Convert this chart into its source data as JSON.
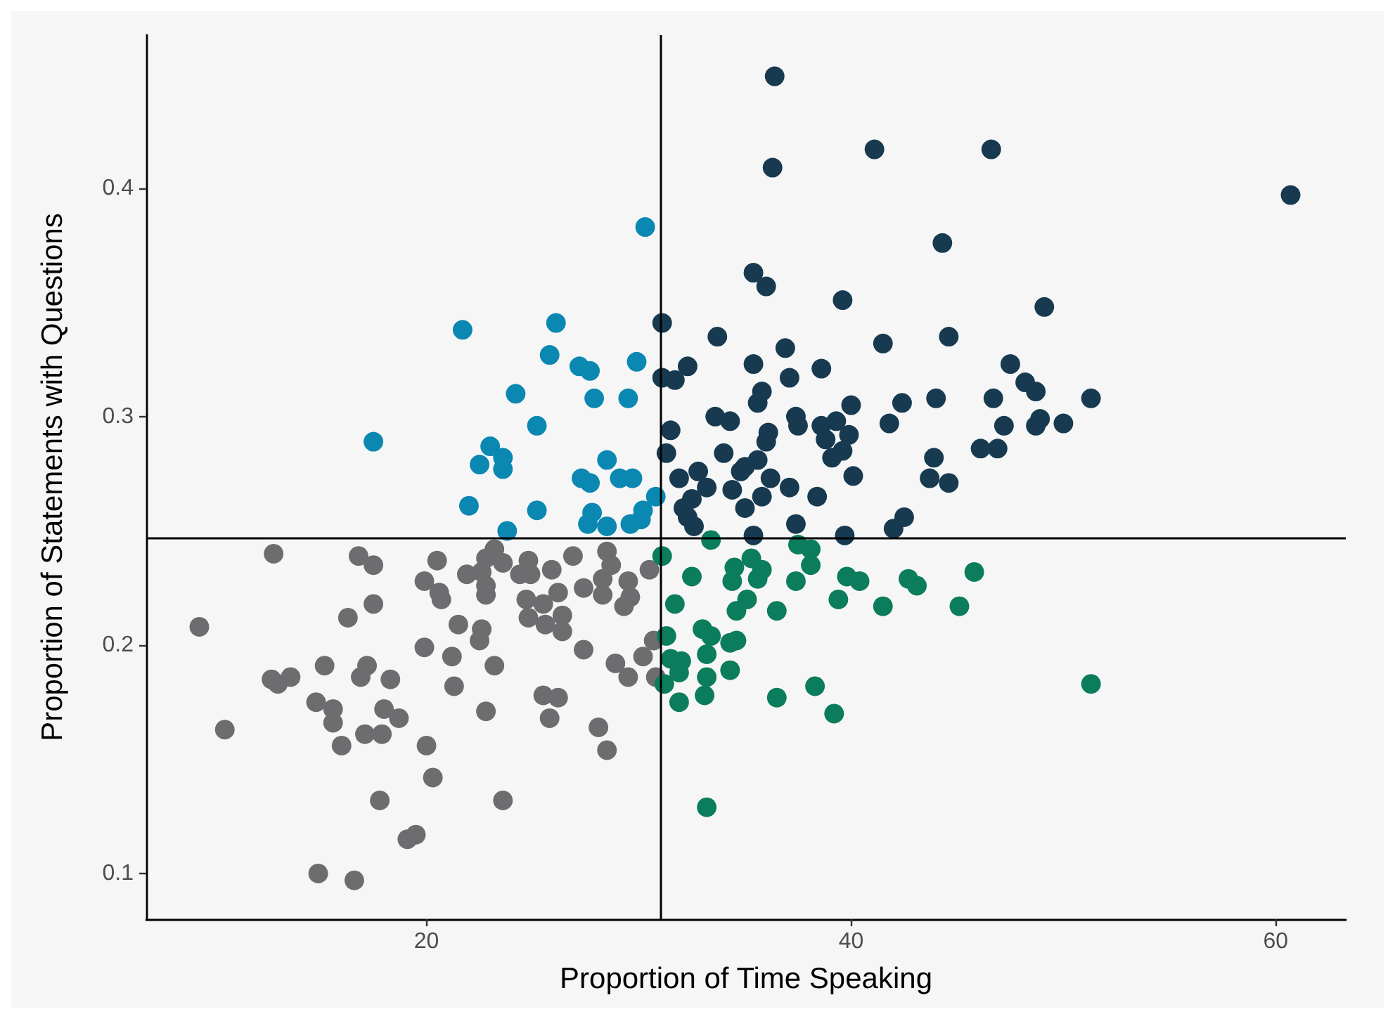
{
  "chart_data": {
    "type": "scatter",
    "xlabel": "Proportion of Time Speaking",
    "ylabel": "Proportion of Statements with Questions",
    "xlim": [
      6.8,
      63.3
    ],
    "ylim": [
      0.08,
      0.467
    ],
    "xticks": [
      20,
      40,
      60
    ],
    "yticks": [
      0.1,
      0.2,
      0.3,
      0.4
    ],
    "marker": "circle",
    "ref_lines": [
      {
        "axis": "x",
        "value": 31.0,
        "color": "#000000"
      },
      {
        "axis": "y",
        "value": 0.247,
        "color": "#000000"
      }
    ],
    "series": [
      {
        "color": "#6d6d70",
        "x": [
          12.8,
          16.8,
          17.5,
          20.5,
          23.2,
          22.8,
          23.6,
          24.8,
          25.9,
          26.9,
          28.5,
          28.7,
          30.5,
          19.9,
          21.9,
          22.6,
          24.4,
          24.9,
          20.6,
          20.7,
          22.8,
          22.8,
          27.4,
          28.3,
          28.3,
          29.5,
          29.6,
          29.3,
          26.2,
          24.7,
          25.5,
          17.5,
          9.3,
          16.3,
          21.5,
          22.6,
          22.5,
          24.8,
          25.6,
          26.4,
          26.4,
          19.9,
          21.2,
          23.2,
          27.4,
          28.9,
          29.5,
          30.2,
          30.7,
          30.8,
          15.2,
          17.2,
          16.9,
          12.7,
          13.0,
          13.6,
          18.3,
          21.3,
          14.8,
          15.6,
          15.6,
          18.0,
          18.7,
          22.8,
          25.5,
          26.2,
          25.8,
          10.5,
          17.1,
          17.9,
          16.0,
          20.0,
          28.1,
          28.5,
          20.3,
          17.8,
          23.6,
          19.1,
          19.5,
          14.9,
          16.6
        ],
        "values": [
          0.24,
          0.239,
          0.235,
          0.237,
          0.242,
          0.238,
          0.236,
          0.237,
          0.233,
          0.239,
          0.241,
          0.235,
          0.233,
          0.228,
          0.231,
          0.232,
          0.231,
          0.231,
          0.223,
          0.22,
          0.226,
          0.222,
          0.225,
          0.229,
          0.222,
          0.228,
          0.221,
          0.217,
          0.223,
          0.22,
          0.218,
          0.218,
          0.208,
          0.212,
          0.209,
          0.207,
          0.202,
          0.212,
          0.209,
          0.213,
          0.206,
          0.199,
          0.195,
          0.191,
          0.198,
          0.192,
          0.186,
          0.195,
          0.202,
          0.186,
          0.191,
          0.191,
          0.186,
          0.185,
          0.183,
          0.186,
          0.185,
          0.182,
          0.175,
          0.172,
          0.166,
          0.172,
          0.168,
          0.171,
          0.178,
          0.177,
          0.168,
          0.163,
          0.161,
          0.161,
          0.156,
          0.156,
          0.164,
          0.154,
          0.142,
          0.132,
          0.132,
          0.115,
          0.117,
          0.1,
          0.097
        ]
      },
      {
        "color": "#0b88b2",
        "x": [
          30.3,
          21.7,
          26.1,
          25.8,
          27.2,
          27.7,
          29.9,
          24.2,
          27.9,
          29.5,
          25.2,
          17.5,
          23.0,
          23.6,
          22.5,
          23.6,
          28.5,
          27.3,
          27.7,
          29.1,
          29.7,
          30.8,
          22.0,
          25.2,
          27.8,
          27.6,
          28.5,
          29.6,
          30.2,
          30.1,
          23.8
        ],
        "values": [
          0.383,
          0.338,
          0.341,
          0.327,
          0.322,
          0.32,
          0.324,
          0.31,
          0.308,
          0.308,
          0.296,
          0.289,
          0.287,
          0.282,
          0.279,
          0.277,
          0.281,
          0.273,
          0.271,
          0.273,
          0.273,
          0.265,
          0.261,
          0.259,
          0.258,
          0.253,
          0.252,
          0.253,
          0.259,
          0.255,
          0.25
        ]
      },
      {
        "color": "#173a50",
        "x": [
          36.4,
          41.1,
          46.6,
          36.3,
          44.3,
          35.4,
          36.0,
          39.6,
          49.1,
          31.1,
          33.7,
          36.9,
          41.5,
          44.6,
          32.3,
          35.4,
          38.6,
          47.5,
          60.7,
          51.3,
          37.1,
          31.1,
          31.7,
          35.8,
          35.6,
          40.0,
          42.4,
          44.0,
          46.7,
          48.2,
          48.7,
          33.6,
          34.3,
          37.4,
          37.5,
          38.6,
          39.3,
          38.8,
          39.9,
          41.8,
          47.2,
          48.9,
          48.7,
          50.0,
          31.5,
          36.1,
          36.0,
          31.3,
          34.0,
          35.6,
          35.0,
          34.8,
          39.6,
          39.1,
          43.9,
          46.1,
          46.9,
          31.9,
          32.8,
          33.2,
          34.4,
          36.2,
          35.8,
          37.1,
          40.1,
          43.7,
          44.6,
          38.4,
          35.0,
          32.5,
          32.1,
          32.3,
          32.6,
          37.4,
          42.5,
          42.0,
          35.4,
          39.7
        ],
        "values": [
          0.449,
          0.417,
          0.417,
          0.409,
          0.376,
          0.363,
          0.357,
          0.351,
          0.348,
          0.341,
          0.335,
          0.33,
          0.332,
          0.335,
          0.322,
          0.323,
          0.321,
          0.323,
          0.397,
          0.308,
          0.317,
          0.317,
          0.316,
          0.311,
          0.306,
          0.305,
          0.306,
          0.308,
          0.308,
          0.315,
          0.311,
          0.3,
          0.298,
          0.3,
          0.296,
          0.296,
          0.298,
          0.29,
          0.292,
          0.297,
          0.296,
          0.299,
          0.296,
          0.297,
          0.294,
          0.293,
          0.289,
          0.284,
          0.284,
          0.281,
          0.278,
          0.276,
          0.285,
          0.282,
          0.282,
          0.286,
          0.286,
          0.273,
          0.276,
          0.269,
          0.268,
          0.273,
          0.265,
          0.269,
          0.274,
          0.273,
          0.271,
          0.265,
          0.26,
          0.264,
          0.26,
          0.256,
          0.252,
          0.253,
          0.256,
          0.251,
          0.248,
          0.248
        ]
      },
      {
        "color": "#0b7d5c",
        "x": [
          33.4,
          31.1,
          37.5,
          38.1,
          38.1,
          35.3,
          34.5,
          35.8,
          35.6,
          34.4,
          32.5,
          37.4,
          39.8,
          40.4,
          42.7,
          43.1,
          45.8,
          31.7,
          35.1,
          34.6,
          36.5,
          39.4,
          41.5,
          45.1,
          31.3,
          33.0,
          33.4,
          34.3,
          34.6,
          31.5,
          32.0,
          31.9,
          33.2,
          33.2,
          34.3,
          31.2,
          33.1,
          31.9,
          36.5,
          38.3,
          39.2,
          33.2,
          51.3
        ],
        "values": [
          0.246,
          0.239,
          0.244,
          0.242,
          0.235,
          0.238,
          0.234,
          0.233,
          0.229,
          0.228,
          0.23,
          0.228,
          0.23,
          0.228,
          0.229,
          0.226,
          0.232,
          0.218,
          0.22,
          0.215,
          0.215,
          0.22,
          0.217,
          0.217,
          0.204,
          0.207,
          0.204,
          0.201,
          0.202,
          0.194,
          0.193,
          0.188,
          0.196,
          0.186,
          0.189,
          0.183,
          0.178,
          0.175,
          0.177,
          0.182,
          0.17,
          0.129,
          0.183
        ]
      }
    ]
  }
}
